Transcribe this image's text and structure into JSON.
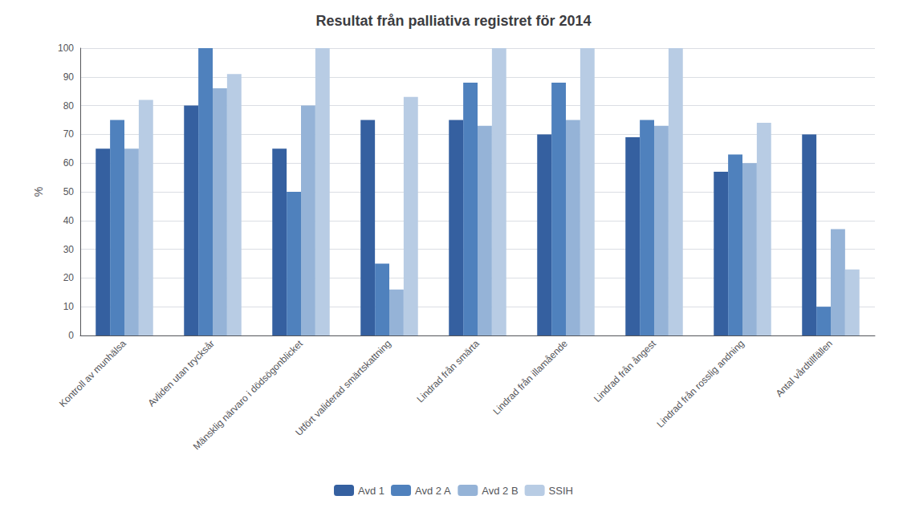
{
  "chart_data": {
    "type": "bar",
    "title": "Resultat från palliativa registret för 2014",
    "ylabel": "%",
    "categories": [
      "Kontroll av munhälsa",
      "Avliden utan trycksår",
      "Mänsklig närvaro i dödsögonblicket",
      "Utfört validerad smärtskattning",
      "Lindrad från smärta",
      "Lindrad från illamående",
      "Lindrad från ångest",
      "Lindrad från rosslig andning",
      "Antal vårdtillfällen"
    ],
    "series": [
      {
        "name": "Avd 1",
        "color": "#3560A0",
        "values": [
          65,
          80,
          65,
          75,
          75,
          70,
          69,
          57,
          70
        ]
      },
      {
        "name": "Avd 2 A",
        "color": "#4F81BD",
        "values": [
          75,
          100,
          50,
          25,
          88,
          88,
          75,
          63,
          10
        ]
      },
      {
        "name": "Avd 2 B",
        "color": "#95B3D7",
        "values": [
          65,
          86,
          80,
          16,
          73,
          75,
          73,
          60,
          37
        ]
      },
      {
        "name": "SSIH",
        "color": "#B8CCE4",
        "values": [
          82,
          91,
          100,
          83,
          100,
          100,
          100,
          74,
          23
        ]
      }
    ],
    "ylim": [
      0,
      100
    ],
    "yticks": [
      0,
      10,
      20,
      30,
      40,
      50,
      60,
      70,
      80,
      90,
      100
    ],
    "grid": true,
    "legend": "bottom"
  }
}
